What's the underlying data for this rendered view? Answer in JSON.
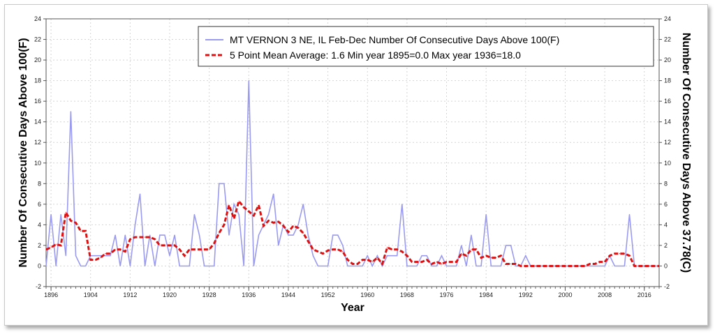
{
  "chart_data": {
    "type": "line",
    "title": "",
    "xlabel": "Year",
    "ylabel": "Number Of Consecutive Days Above 100(F)",
    "ylabel_right": "Number Of Consecutive Days Above 37.78(C)",
    "xlim": [
      1895,
      2019
    ],
    "ylim": [
      -2,
      24
    ],
    "x_ticks": [
      1896,
      1904,
      1912,
      1920,
      1928,
      1936,
      1944,
      1952,
      1960,
      1968,
      1976,
      1984,
      1992,
      2000,
      2008,
      2016
    ],
    "y_ticks": [
      -2,
      0,
      2,
      4,
      6,
      8,
      10,
      12,
      14,
      16,
      18,
      20,
      22,
      24
    ],
    "grid": true,
    "legend_position": "top-right",
    "series": [
      {
        "name": "MT VERNON 3 NE, IL  Feb-Dec  Number Of Consecutive Days Above 100(F)",
        "color": "#9a9af0",
        "style": "solid",
        "x_start": 1895,
        "values": [
          0,
          5,
          0,
          5,
          1,
          15,
          1,
          0,
          0,
          1,
          1,
          1,
          1,
          1,
          3,
          0,
          3,
          0,
          4,
          7,
          0,
          3,
          0,
          3,
          3,
          1,
          3,
          0,
          0,
          0,
          5,
          3,
          0,
          0,
          0,
          8,
          8,
          3,
          6,
          5,
          0,
          18,
          0,
          3,
          4,
          5,
          7,
          2,
          4,
          3,
          3,
          4,
          6,
          3,
          1,
          0,
          0,
          0,
          3,
          3,
          2,
          0,
          0,
          0,
          0,
          1,
          0,
          1,
          0,
          1,
          1,
          1,
          6,
          0,
          0,
          0,
          1,
          1,
          0,
          0,
          1,
          0,
          0,
          0,
          2,
          0,
          3,
          0,
          0,
          5,
          0,
          0,
          0,
          2,
          2,
          0,
          0,
          1,
          0,
          0,
          0,
          0,
          0,
          0,
          0,
          0,
          0,
          0,
          0,
          0,
          0,
          0,
          0,
          0,
          1,
          0,
          0,
          0,
          5,
          0,
          0,
          0,
          0,
          0,
          0
        ]
      },
      {
        "name": "5 Point Mean  Average: 1.6  Min year 1895=0.0  Max year 1936=18.0",
        "color": "#dd1111",
        "style": "dashed",
        "x_start": 1895,
        "values": [
          1.6,
          1.8,
          2.1,
          2.0,
          5.2,
          4.4,
          4.2,
          3.4,
          3.4,
          0.6,
          0.6,
          0.8,
          1.2,
          1.2,
          1.6,
          1.6,
          1.4,
          2.6,
          2.8,
          2.8,
          2.8,
          2.8,
          2.6,
          2.0,
          2.0,
          2.0,
          2.0,
          1.6,
          1.0,
          1.6,
          1.6,
          1.6,
          1.6,
          1.6,
          2.2,
          3.2,
          4.0,
          5.9,
          4.6,
          6.3,
          5.7,
          5.3,
          4.9,
          5.9,
          3.9,
          4.4,
          4.2,
          4.3,
          3.9,
          3.3,
          3.9,
          3.7,
          3.2,
          2.4,
          1.6,
          1.4,
          1.2,
          1.5,
          1.6,
          1.6,
          1.4,
          0.6,
          0.2,
          0.2,
          0.6,
          0.6,
          0.4,
          0.8,
          0.2,
          1.8,
          1.6,
          1.6,
          1.4,
          1.0,
          0.4,
          0.4,
          0.4,
          0.6,
          0.2,
          0.4,
          0.2,
          0.4,
          0.4,
          0.4,
          1.2,
          1.0,
          1.6,
          1.6,
          0.8,
          1.0,
          0.8,
          0.8,
          1.0,
          0.2,
          0.2,
          0.2,
          0.0,
          0.0,
          0.0,
          0.0,
          0.0,
          0.0,
          0.0,
          0.0,
          0.0,
          0.0,
          0.0,
          0.0,
          0.0,
          0.0,
          0.2,
          0.2,
          0.4,
          0.4,
          1.0,
          1.2,
          1.2,
          1.2,
          1.0,
          0.0,
          0.0,
          0.0,
          0.0,
          0.0,
          0.0
        ]
      }
    ]
  }
}
